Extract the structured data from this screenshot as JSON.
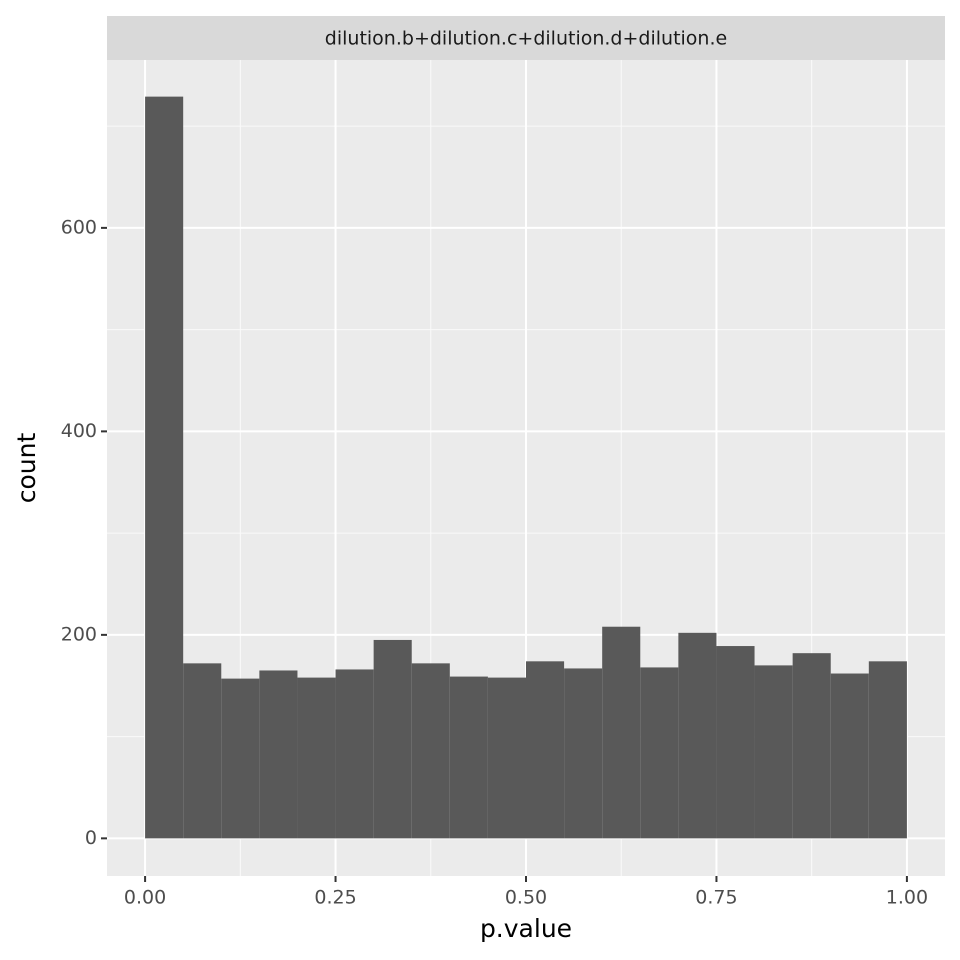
{
  "chart_data": {
    "type": "histogram",
    "facet": "dilution.b+dilution.c+dilution.d+dilution.e",
    "x_label": "p.value",
    "y_label": "count",
    "bins": [
      0,
      0.05,
      0.1,
      0.15,
      0.2,
      0.25,
      0.3,
      0.35,
      0.4,
      0.45,
      0.5,
      0.55,
      0.6,
      0.65,
      0.7,
      0.75,
      0.8,
      0.85,
      0.9,
      0.95,
      1
    ],
    "values": [
      729,
      172,
      157,
      165,
      158,
      166,
      195,
      172,
      159,
      158,
      174,
      167,
      208,
      168,
      202,
      189,
      170,
      182,
      162,
      174
    ],
    "color": "#595959",
    "xlim": [
      -0.05,
      1.05
    ],
    "ylim": [
      -37,
      765
    ],
    "xticks": [
      {
        "value": 0,
        "label": "0.00"
      },
      {
        "value": 0.25,
        "label": "0.25"
      },
      {
        "value": 0.5,
        "label": "0.50"
      },
      {
        "value": 0.75,
        "label": "0.75"
      },
      {
        "value": 1,
        "label": "1.00"
      }
    ],
    "yticks": [
      0,
      200,
      400,
      600
    ],
    "grid": true
  }
}
